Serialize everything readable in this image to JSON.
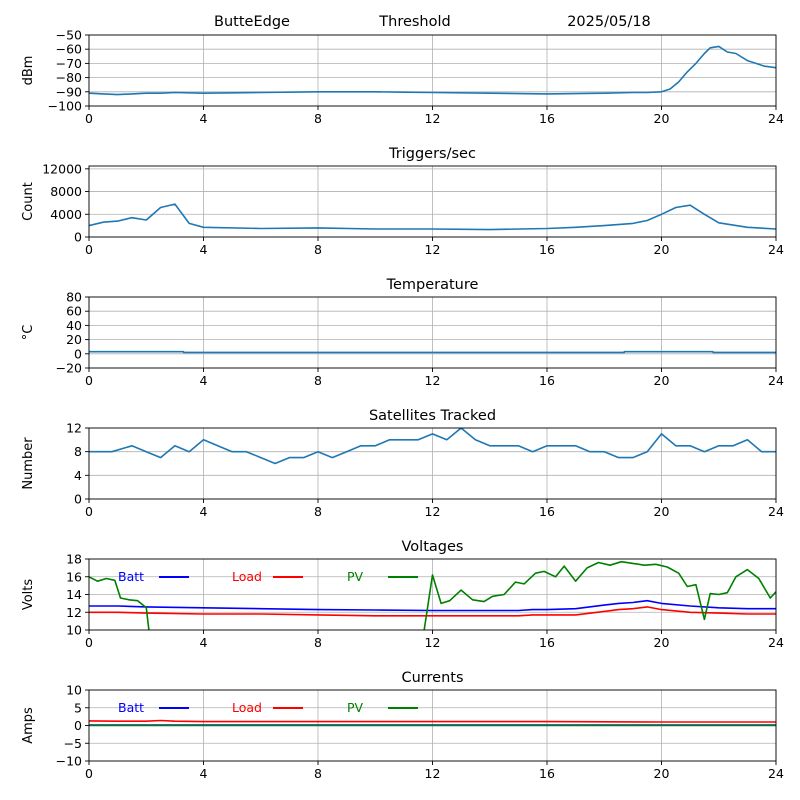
{
  "header": {
    "site": "ButteEdge",
    "mode": "Threshold",
    "date": "2025/05/18"
  },
  "chart_data": [
    {
      "type": "line",
      "title": "",
      "ylabel": "dBm",
      "xlim": [
        0,
        24
      ],
      "ylim": [
        -100,
        -50
      ],
      "xticks": [
        0,
        4,
        8,
        12,
        16,
        20,
        24
      ],
      "yticks": [
        -100,
        -90,
        -80,
        -70,
        -60,
        -50
      ],
      "grid": true,
      "series": [
        {
          "color": "#1f77b4",
          "x": [
            0,
            0.5,
            1,
            1.5,
            2,
            2.5,
            3,
            4,
            6,
            8,
            9,
            10,
            11,
            12,
            14,
            16,
            18,
            19,
            19.5,
            20,
            20.3,
            20.6,
            20.9,
            21.2,
            21.5,
            21.7,
            22,
            22.3,
            22.6,
            23,
            23.3,
            23.6,
            24
          ],
          "y": [
            -91,
            -91.5,
            -92,
            -91.5,
            -91,
            -91,
            -90.5,
            -91,
            -90.5,
            -90,
            -90,
            -90,
            -90.3,
            -90.5,
            -91,
            -91.5,
            -91,
            -90.5,
            -90.5,
            -90,
            -88,
            -83,
            -76,
            -70,
            -63,
            -59,
            -58,
            -62,
            -63,
            -68,
            -70,
            -72,
            -73
          ]
        }
      ]
    },
    {
      "type": "line",
      "title": "Triggers/sec",
      "ylabel": "Count",
      "xlim": [
        0,
        24
      ],
      "ylim": [
        0,
        12500
      ],
      "xticks": [
        0,
        4,
        8,
        12,
        16,
        20,
        24
      ],
      "yticks": [
        0,
        4000,
        8000,
        12000
      ],
      "grid": true,
      "series": [
        {
          "color": "#1f77b4",
          "x": [
            0,
            0.5,
            1,
            1.5,
            2,
            2.5,
            3,
            3.5,
            4,
            6,
            8,
            10,
            12,
            14,
            16,
            17,
            18,
            19,
            19.5,
            20,
            20.5,
            21,
            21.5,
            22,
            23,
            24
          ],
          "y": [
            2000,
            2600,
            2800,
            3400,
            3000,
            5200,
            5800,
            2400,
            1700,
            1500,
            1600,
            1400,
            1400,
            1300,
            1500,
            1700,
            2000,
            2400,
            2900,
            4000,
            5200,
            5600,
            4000,
            2500,
            1700,
            1400
          ]
        }
      ]
    },
    {
      "type": "line",
      "title": "Temperature",
      "ylabel": "°C",
      "xlim": [
        0,
        24
      ],
      "ylim": [
        -20,
        80
      ],
      "xticks": [
        0,
        4,
        8,
        12,
        16,
        20,
        24
      ],
      "yticks": [
        -20,
        0,
        20,
        40,
        60,
        80
      ],
      "grid": true,
      "series": [
        {
          "color": "#1f77b4",
          "x": [
            0,
            3.3,
            3.3,
            18.7,
            18.7,
            21.8,
            21.8,
            24
          ],
          "y": [
            3,
            3,
            2,
            2,
            3,
            3,
            2,
            2
          ]
        }
      ]
    },
    {
      "type": "line",
      "title": "Satellites Tracked",
      "ylabel": "Number",
      "xlim": [
        0,
        24
      ],
      "ylim": [
        0,
        12
      ],
      "xticks": [
        0,
        4,
        8,
        12,
        16,
        20,
        24
      ],
      "yticks": [
        0,
        4,
        8,
        12
      ],
      "grid": true,
      "series": [
        {
          "color": "#1f77b4",
          "x": [
            0,
            0.8,
            1.5,
            2,
            2.5,
            3,
            3.5,
            4,
            4.5,
            5,
            5.5,
            6,
            6.5,
            7,
            7.5,
            8,
            8.5,
            9,
            9.5,
            10,
            10.5,
            11,
            11.5,
            12,
            12.5,
            13,
            13.5,
            14,
            14.5,
            15,
            15.5,
            16,
            16.5,
            17,
            17.5,
            18,
            18.5,
            19,
            19.5,
            20,
            20.5,
            21,
            21.5,
            22,
            22.5,
            23,
            23.5,
            24
          ],
          "y": [
            8,
            8,
            9,
            8,
            7,
            9,
            8,
            10,
            9,
            8,
            8,
            7,
            6,
            7,
            7,
            8,
            7,
            8,
            9,
            9,
            10,
            10,
            10,
            11,
            10,
            12,
            10,
            9,
            9,
            9,
            8,
            9,
            9,
            9,
            8,
            8,
            7,
            7,
            8,
            11,
            9,
            9,
            8,
            9,
            9,
            10,
            8,
            8
          ]
        }
      ]
    },
    {
      "type": "line",
      "title": "Voltages",
      "ylabel": "Volts",
      "xlim": [
        0,
        24
      ],
      "ylim": [
        10,
        18
      ],
      "xticks": [
        0,
        4,
        8,
        12,
        16,
        20,
        24
      ],
      "yticks": [
        10,
        12,
        14,
        16,
        18
      ],
      "grid": true,
      "legend": "inline-top",
      "series": [
        {
          "name": "Batt",
          "color": "#0000ff",
          "x": [
            0,
            1,
            2,
            4,
            6,
            8,
            10,
            12,
            14,
            15,
            15.5,
            16,
            17,
            18,
            18.5,
            19,
            19.5,
            20,
            21,
            22,
            23,
            24
          ],
          "y": [
            12.7,
            12.7,
            12.6,
            12.5,
            12.4,
            12.3,
            12.25,
            12.2,
            12.2,
            12.2,
            12.3,
            12.3,
            12.4,
            12.8,
            13.0,
            13.1,
            13.3,
            13.0,
            12.7,
            12.5,
            12.4,
            12.4
          ]
        },
        {
          "name": "Load",
          "color": "#ff0000",
          "x": [
            0,
            1,
            2,
            4,
            6,
            8,
            10,
            12,
            14,
            15,
            15.5,
            16,
            17,
            18,
            18.5,
            19,
            19.5,
            20,
            21,
            22,
            23,
            24
          ],
          "y": [
            12.0,
            12.0,
            11.9,
            11.8,
            11.8,
            11.7,
            11.6,
            11.6,
            11.6,
            11.6,
            11.7,
            11.7,
            11.7,
            12.1,
            12.3,
            12.4,
            12.6,
            12.3,
            12.0,
            11.9,
            11.8,
            11.8
          ]
        },
        {
          "name": "PV",
          "color": "#008000",
          "x": [
            0,
            0.3,
            0.6,
            0.9,
            1.1,
            1.4,
            1.7,
            2.0,
            2.1,
            11.7,
            12,
            12.3,
            12.6,
            13,
            13.4,
            13.8,
            14.1,
            14.5,
            14.9,
            15.2,
            15.6,
            15.9,
            16.3,
            16.6,
            17,
            17.4,
            17.8,
            18.2,
            18.6,
            19,
            19.4,
            19.8,
            20.2,
            20.6,
            20.9,
            21.2,
            21.5,
            21.7,
            22,
            22.3,
            22.6,
            23,
            23.4,
            23.8,
            24
          ],
          "y": [
            16.0,
            15.5,
            15.8,
            15.6,
            13.6,
            13.4,
            13.3,
            12.5,
            9.8,
            9.8,
            16.2,
            13.0,
            13.3,
            14.5,
            13.4,
            13.2,
            13.8,
            14.0,
            15.4,
            15.2,
            16.4,
            16.6,
            16.0,
            17.2,
            15.5,
            17.0,
            17.6,
            17.3,
            17.7,
            17.5,
            17.3,
            17.4,
            17.1,
            16.4,
            14.9,
            15.1,
            11.2,
            14.1,
            14.0,
            14.2,
            16.0,
            16.8,
            15.8,
            13.6,
            14.3
          ]
        }
      ]
    },
    {
      "type": "line",
      "title": "Currents",
      "ylabel": "Amps",
      "xlim": [
        0,
        24
      ],
      "ylim": [
        -10,
        10
      ],
      "xticks": [
        0,
        4,
        8,
        12,
        16,
        20,
        24
      ],
      "yticks": [
        -10,
        -5,
        0,
        5,
        10
      ],
      "grid": true,
      "legend": "inline-top",
      "series": [
        {
          "name": "Batt",
          "color": "#0000ff",
          "x": [
            0,
            24
          ],
          "y": [
            0.1,
            0.1
          ]
        },
        {
          "name": "Load",
          "color": "#ff0000",
          "x": [
            0,
            1,
            2,
            2.5,
            3,
            4,
            8,
            12,
            16,
            20,
            24
          ],
          "y": [
            1.3,
            1.2,
            1.2,
            1.4,
            1.2,
            1.1,
            1.1,
            1.1,
            1.1,
            1.0,
            1.0
          ]
        },
        {
          "name": "PV",
          "color": "#008000",
          "x": [
            0,
            24
          ],
          "y": [
            0.0,
            0.0
          ]
        }
      ]
    }
  ]
}
